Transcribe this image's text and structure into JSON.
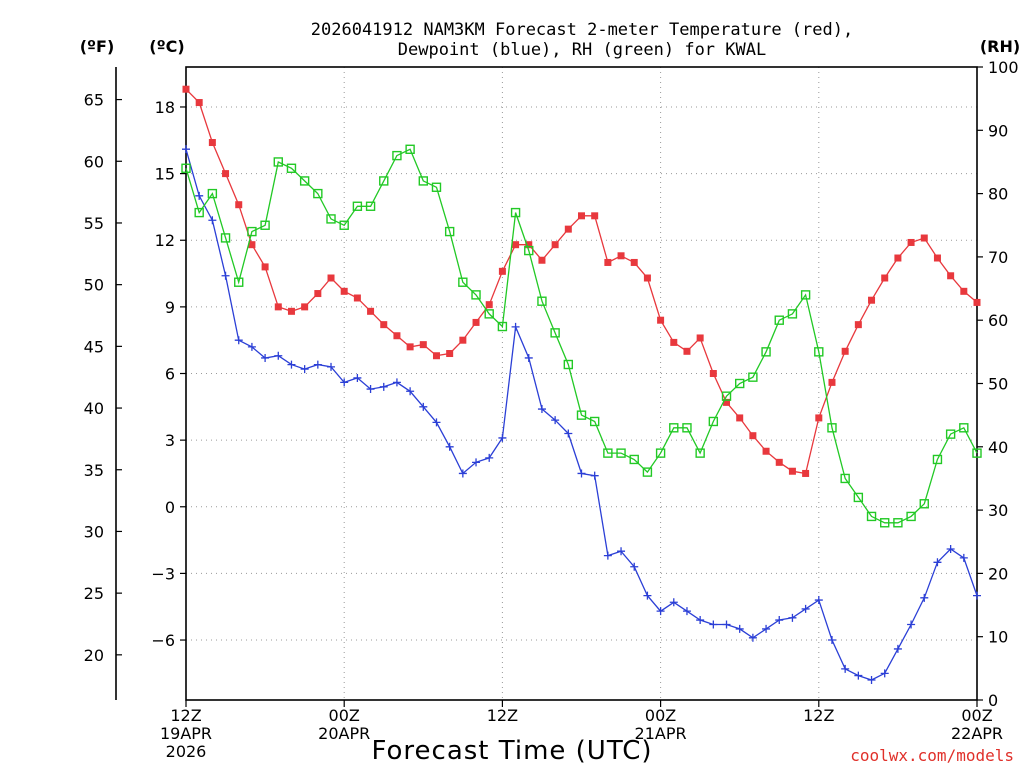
{
  "chart_data": {
    "type": "line",
    "title": "2026041912 NAM3KM Forecast 2-meter Temperature (red),",
    "subtitle": "Dewpoint (blue), RH (green) for KWAL",
    "xlabel": "Forecast Time (UTC)",
    "credit": "coolwx.com/models",
    "units": {
      "fahrenheit": "(ºF)",
      "celsius": "(ºC)",
      "rh": "(RH)"
    },
    "x_unit": "forecast hour",
    "xlim": [
      0,
      60
    ],
    "ylim_celsius": [
      -8.7,
      19.8
    ],
    "ylim_rh": [
      0,
      100
    ],
    "x_ticks": [
      {
        "x": 0,
        "line1": "12Z",
        "line2": "19APR",
        "line3": "2026"
      },
      {
        "x": 12,
        "line1": "00Z",
        "line2": "20APR",
        "line3": ""
      },
      {
        "x": 24,
        "line1": "12Z",
        "line2": "",
        "line3": ""
      },
      {
        "x": 36,
        "line1": "00Z",
        "line2": "21APR",
        "line3": ""
      },
      {
        "x": 48,
        "line1": "12Z",
        "line2": "",
        "line3": ""
      },
      {
        "x": 60,
        "line1": "00Z",
        "line2": "22APR",
        "line3": ""
      }
    ],
    "celsius_ticks": [
      "18",
      "15",
      "12",
      "9",
      "6",
      "3",
      "0",
      "−3",
      "−6"
    ],
    "fahrenheit_ticks": [
      "65",
      "60",
      "55",
      "50",
      "45",
      "40",
      "35",
      "30",
      "25",
      "20"
    ],
    "rh_ticks": [
      "100",
      "90",
      "80",
      "70",
      "60",
      "50",
      "40",
      "30",
      "20",
      "10",
      "0"
    ],
    "series": [
      {
        "name": "2-meter Temperature",
        "unit": "degC",
        "color": "#e8383d",
        "marker": "filled-square",
        "values": [
          18.8,
          18.2,
          16.4,
          15.0,
          13.6,
          11.8,
          10.8,
          9.0,
          8.8,
          9.0,
          9.6,
          10.3,
          9.7,
          9.4,
          8.8,
          8.2,
          7.7,
          7.2,
          7.3,
          6.8,
          6.9,
          7.5,
          8.3,
          9.1,
          10.6,
          11.8,
          11.8,
          11.1,
          11.8,
          12.5,
          13.1,
          13.1,
          11.0,
          11.3,
          11.0,
          10.3,
          8.4,
          7.4,
          7.0,
          7.6,
          6.0,
          4.7,
          4.0,
          3.2,
          2.5,
          2.0,
          1.6,
          1.5,
          4.0,
          5.6,
          7.0,
          8.2,
          9.3,
          10.3,
          11.2,
          11.9,
          12.1,
          11.2,
          10.4,
          9.7,
          9.2
        ]
      },
      {
        "name": "Dewpoint",
        "unit": "degC",
        "color": "#2b3fd6",
        "marker": "plus",
        "values": [
          16.1,
          14.0,
          12.9,
          10.4,
          7.5,
          7.2,
          6.7,
          6.8,
          6.4,
          6.2,
          6.4,
          6.3,
          5.6,
          5.8,
          5.3,
          5.4,
          5.6,
          5.2,
          4.5,
          3.8,
          2.7,
          1.5,
          2.0,
          2.2,
          3.1,
          8.1,
          6.7,
          4.4,
          3.9,
          3.3,
          1.5,
          1.4,
          -2.2,
          -2.0,
          -2.7,
          -4.0,
          -4.7,
          -4.3,
          -4.7,
          -5.1,
          -5.3,
          -5.3,
          -5.5,
          -5.9,
          -5.5,
          -5.1,
          -5.0,
          -4.6,
          -4.2,
          -6.0,
          -7.3,
          -7.6,
          -7.8,
          -7.5,
          -6.4,
          -5.3,
          -4.1,
          -2.5,
          -1.9,
          -2.3,
          -4.0
        ]
      },
      {
        "name": "RH",
        "unit": "percent",
        "color": "#22c925",
        "marker": "open-square",
        "values": [
          84,
          77,
          80,
          73,
          66,
          74,
          75,
          85,
          84,
          82,
          80,
          76,
          75,
          78,
          78,
          82,
          86,
          87,
          82,
          81,
          74,
          66,
          64,
          61,
          59,
          77,
          71,
          63,
          58,
          53,
          45,
          44,
          39,
          39,
          38,
          36,
          39,
          43,
          43,
          39,
          44,
          48,
          50,
          51,
          55,
          60,
          61,
          64,
          55,
          43,
          35,
          32,
          29,
          28,
          28,
          29,
          31,
          38,
          42,
          43,
          39
        ]
      }
    ]
  }
}
